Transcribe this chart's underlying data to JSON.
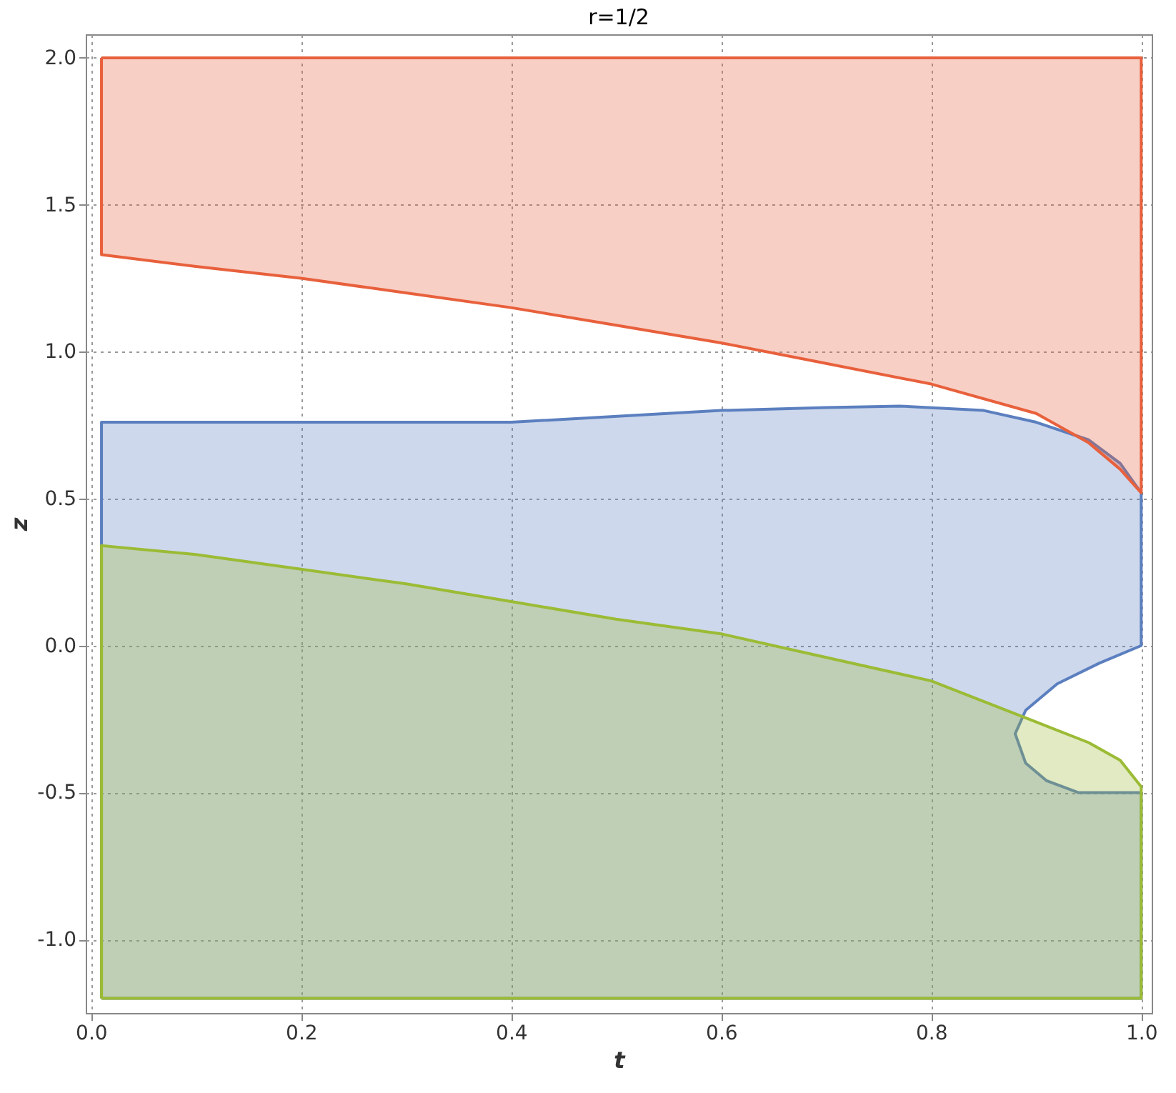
{
  "chart_data": {
    "type": "area",
    "title": "r=1/2",
    "xlabel": "t",
    "ylabel": "z",
    "xlim": [
      -0.005,
      1.01
    ],
    "ylim": [
      -1.25,
      2.08
    ],
    "xticks": [
      {
        "value": 0,
        "label": "0.0"
      },
      {
        "value": 0.2,
        "label": "0.2"
      },
      {
        "value": 0.4,
        "label": "0.4"
      },
      {
        "value": 0.6,
        "label": "0.6"
      },
      {
        "value": 0.8,
        "label": "0.8"
      },
      {
        "value": 1,
        "label": "1.0"
      }
    ],
    "yticks": [
      {
        "value": -1,
        "label": "-1.0"
      },
      {
        "value": -0.5,
        "label": "-0.5"
      },
      {
        "value": 0,
        "label": "0.0"
      },
      {
        "value": 0.5,
        "label": "0.5"
      },
      {
        "value": 1,
        "label": "1.0"
      },
      {
        "value": 1.5,
        "label": "1.5"
      },
      {
        "value": 2,
        "label": "2.0"
      }
    ],
    "grid": true,
    "series": [
      {
        "color": "#5b7fbf",
        "x": [
          0.01,
          0.01,
          0.2,
          0.4,
          0.6,
          0.7,
          0.77,
          0.85,
          0.9,
          0.95,
          0.98,
          1.0,
          1.0,
          0.96,
          0.92,
          0.89,
          0.88,
          0.89,
          0.91,
          0.94,
          1.0,
          1.0,
          0.01
        ],
        "values": [
          -1.2,
          0.76,
          0.76,
          0.76,
          0.8,
          0.81,
          0.815,
          0.8,
          0.76,
          0.7,
          0.62,
          0.52,
          0.0,
          -0.06,
          -0.13,
          -0.22,
          -0.3,
          -0.4,
          -0.46,
          -0.5,
          -0.5,
          -1.2,
          -1.2
        ]
      },
      {
        "color": "#9bbb35",
        "x": [
          0.01,
          0.01,
          0.1,
          0.2,
          0.3,
          0.4,
          0.5,
          0.6,
          0.7,
          0.8,
          0.9,
          0.95,
          0.98,
          1.0,
          1.0,
          0.01
        ],
        "values": [
          -1.2,
          0.34,
          0.31,
          0.26,
          0.21,
          0.15,
          0.09,
          0.04,
          -0.04,
          -0.12,
          -0.26,
          -0.33,
          -0.39,
          -0.48,
          -1.2,
          -1.2
        ]
      },
      {
        "color": "#e8603c",
        "x": [
          0.01,
          1.0,
          1.0,
          0.98,
          0.95,
          0.9,
          0.8,
          0.7,
          0.6,
          0.5,
          0.4,
          0.3,
          0.2,
          0.1,
          0.01,
          0.01
        ],
        "values": [
          2.0,
          2.0,
          0.52,
          0.6,
          0.69,
          0.79,
          0.89,
          0.96,
          1.03,
          1.09,
          1.15,
          1.2,
          1.25,
          1.29,
          1.33,
          2.0
        ]
      }
    ]
  }
}
